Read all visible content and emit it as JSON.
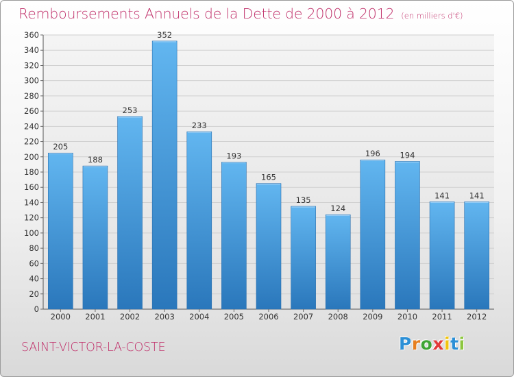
{
  "title": "Remboursements Annuels de la Dette de 2000 à 2012",
  "subtitle": "(en milliers d'€)",
  "town": "SAINT-VICTOR-LA-COSTE",
  "logo": {
    "letters": [
      "P",
      "r",
      "o",
      "x",
      "i",
      "t",
      "i"
    ],
    "colors": [
      "#2b8fd6",
      "#e67e1f",
      "#3fa535",
      "#e23a3a",
      "#f1c40f",
      "#2b8fd6",
      "#8cc63f"
    ]
  },
  "colors": {
    "bar_light": "#5fb2ee",
    "bar_dark": "#2c7bbf",
    "title": "#c0306a",
    "grid": "#cfcfcf"
  },
  "chart_data": {
    "type": "bar",
    "categories": [
      "2000",
      "2001",
      "2002",
      "2003",
      "2004",
      "2005",
      "2006",
      "2007",
      "2008",
      "2009",
      "2010",
      "2011",
      "2012"
    ],
    "values": [
      205,
      188,
      253,
      352,
      233,
      193,
      165,
      135,
      124,
      196,
      194,
      141,
      141
    ],
    "ylim": [
      0,
      360
    ],
    "yticks": [
      0,
      20,
      40,
      60,
      80,
      100,
      120,
      140,
      160,
      180,
      200,
      220,
      240,
      260,
      280,
      300,
      320,
      340,
      360
    ],
    "grid": true,
    "legend": "none"
  }
}
